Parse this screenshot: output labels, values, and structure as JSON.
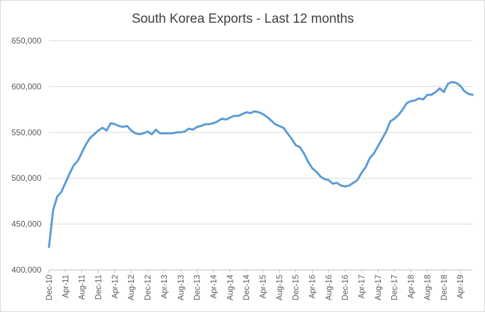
{
  "chart_data": {
    "type": "line",
    "title": "South Korea Exports  - Last 12 months",
    "xlabel": "",
    "ylabel": "",
    "ylim": [
      400000,
      650000
    ],
    "y_ticks": [
      400000,
      450000,
      500000,
      550000,
      600000,
      650000
    ],
    "y_tick_labels": [
      "400,000",
      "450,000",
      "500,000",
      "550,000",
      "600,000",
      "650,000"
    ],
    "x_tick_labels": [
      "Dec-10",
      "Apr-11",
      "Aug-11",
      "Dec-11",
      "Apr-12",
      "Aug-12",
      "Dec-12",
      "Apr-13",
      "Aug-13",
      "Dec-13",
      "Apr-14",
      "Aug-14",
      "Dec-14",
      "Apr-15",
      "Aug-15",
      "Dec-15",
      "Apr-16",
      "Aug-16",
      "Dec-16",
      "Apr-17",
      "Aug-17",
      "Dec-17",
      "Apr-18",
      "Aug-18",
      "Dec-18",
      "Apr-19"
    ],
    "grid": true,
    "legend": "none",
    "line_color": "#5b9bd5",
    "series": [
      {
        "values": [
          425000,
          465000,
          480000,
          485000,
          495000,
          505000,
          514000,
          519000,
          528000,
          537000,
          544000,
          548000,
          552000,
          555000,
          552000,
          560000,
          559000,
          557000,
          556000,
          557000,
          552000,
          549000,
          548000,
          549000,
          551000,
          548000,
          553000,
          549000,
          549000,
          549000,
          549000,
          550000,
          550000,
          551000,
          554000,
          553000,
          556000,
          557000,
          559000,
          559000,
          560000,
          562000,
          565000,
          564000,
          566000,
          568000,
          568000,
          570000,
          572000,
          571000,
          573000,
          572000,
          570000,
          567000,
          563000,
          559000,
          557000,
          555000,
          549000,
          543000,
          536000,
          534000,
          527000,
          518000,
          511000,
          507000,
          502000,
          499000,
          498000,
          494000,
          495000,
          492000,
          491000,
          492000,
          495000,
          498000,
          506000,
          512000,
          522000,
          527000,
          535000,
          543000,
          551000,
          562000,
          565000,
          569000,
          575000,
          582000,
          584000,
          585000,
          587000,
          586000,
          591000,
          591000,
          594000,
          598000,
          594000,
          603000,
          605000,
          604000,
          601000,
          595000,
          592000,
          591000
        ]
      }
    ]
  }
}
